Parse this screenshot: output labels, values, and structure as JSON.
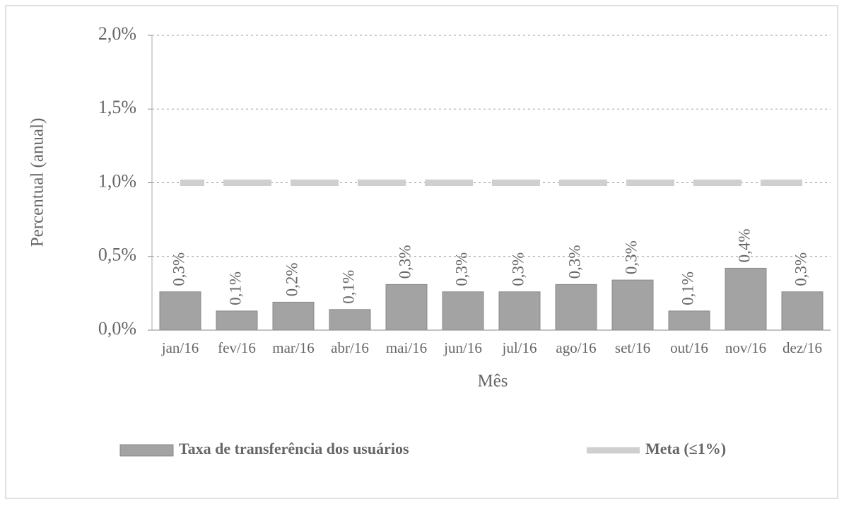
{
  "chart_data": {
    "type": "bar",
    "x_label": "Mês",
    "y_label": "Percentual (anual)",
    "categories": [
      "jan/16",
      "fev/16",
      "mar/16",
      "abr/16",
      "mai/16",
      "jun/16",
      "jul/16",
      "ago/16",
      "set/16",
      "out/16",
      "nov/16",
      "dez/16"
    ],
    "series": [
      {
        "name": "Taxa de transferência dos usuários",
        "type": "bar",
        "color": "#a3a3a3",
        "values": [
          0.26,
          0.13,
          0.19,
          0.14,
          0.31,
          0.26,
          0.26,
          0.31,
          0.34,
          0.13,
          0.42,
          0.26
        ],
        "value_labels": [
          "0,3%",
          "0,1%",
          "0,2%",
          "0,1%",
          "0,3%",
          "0,3%",
          "0,3%",
          "0,3%",
          "0,3%",
          "0,1%",
          "0,4%",
          "0,3%"
        ]
      },
      {
        "name": "Meta (≤1%)",
        "type": "line",
        "color": "#cfcfcf",
        "values": [
          1,
          1,
          1,
          1,
          1,
          1,
          1,
          1,
          1,
          1,
          1,
          1
        ]
      }
    ],
    "ylim": [
      0,
      2
    ],
    "yticks": [
      {
        "value": 0,
        "label": "0,0%"
      },
      {
        "value": 0.5,
        "label": "0,5%"
      },
      {
        "value": 1,
        "label": "1,0%"
      },
      {
        "value": 1.5,
        "label": "1,5%"
      },
      {
        "value": 2,
        "label": "2,0%"
      }
    ],
    "grid": true,
    "legend": "bottom"
  }
}
